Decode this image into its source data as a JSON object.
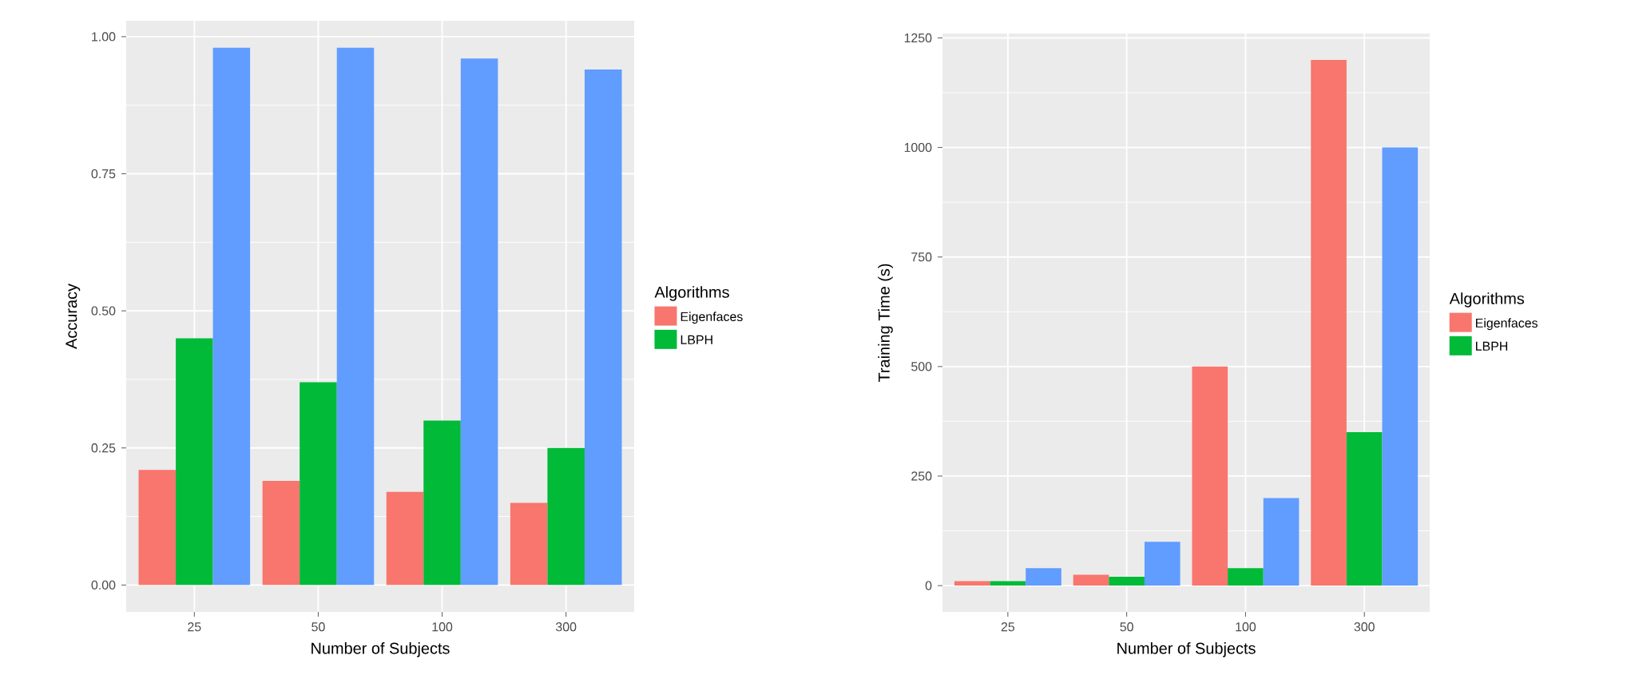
{
  "chart_data": [
    {
      "type": "bar",
      "xlabel": "Number of Subjects",
      "ylabel": "Accuracy",
      "legend_title": "Algorithms",
      "legend": "right",
      "grid": true,
      "categories": [
        "25",
        "50",
        "100",
        "300"
      ],
      "ylim": [
        -0.049,
        1.029
      ],
      "yticks": [
        {
          "value": 0,
          "label": "0.00"
        },
        {
          "value": 0.25,
          "label": "0.25"
        },
        {
          "value": 0.5,
          "label": "0.50"
        },
        {
          "value": 0.75,
          "label": "0.75"
        },
        {
          "value": 1,
          "label": "1.00"
        }
      ],
      "series": [
        {
          "name": "Eigenfaces",
          "color": "#f8766d",
          "values": [
            0.21,
            0.19,
            0.17,
            0.15
          ]
        },
        {
          "name": "LBPH",
          "color": "#00ba38",
          "values": [
            0.45,
            0.37,
            0.3,
            0.25
          ]
        },
        {
          "color": "#619cff",
          "values": [
            0.98,
            0.98,
            0.96,
            0.94
          ]
        }
      ]
    },
    {
      "type": "bar",
      "xlabel": "Number of Subjects",
      "ylabel": "Training Time (s)",
      "legend_title": "Algorithms",
      "legend": "right",
      "grid": true,
      "categories": [
        "25",
        "50",
        "100",
        "300"
      ],
      "ylim": [
        -60,
        1260
      ],
      "yticks": [
        0,
        250,
        500,
        750,
        1000,
        1250
      ],
      "series": [
        {
          "name": "Eigenfaces",
          "color": "#f8766d",
          "values": [
            10,
            25,
            500,
            1200
          ]
        },
        {
          "name": "LBPH",
          "color": "#00ba38",
          "values": [
            10,
            20,
            40,
            350
          ]
        },
        {
          "color": "#619cff",
          "values": [
            40,
            100,
            200,
            1000
          ]
        }
      ]
    }
  ]
}
